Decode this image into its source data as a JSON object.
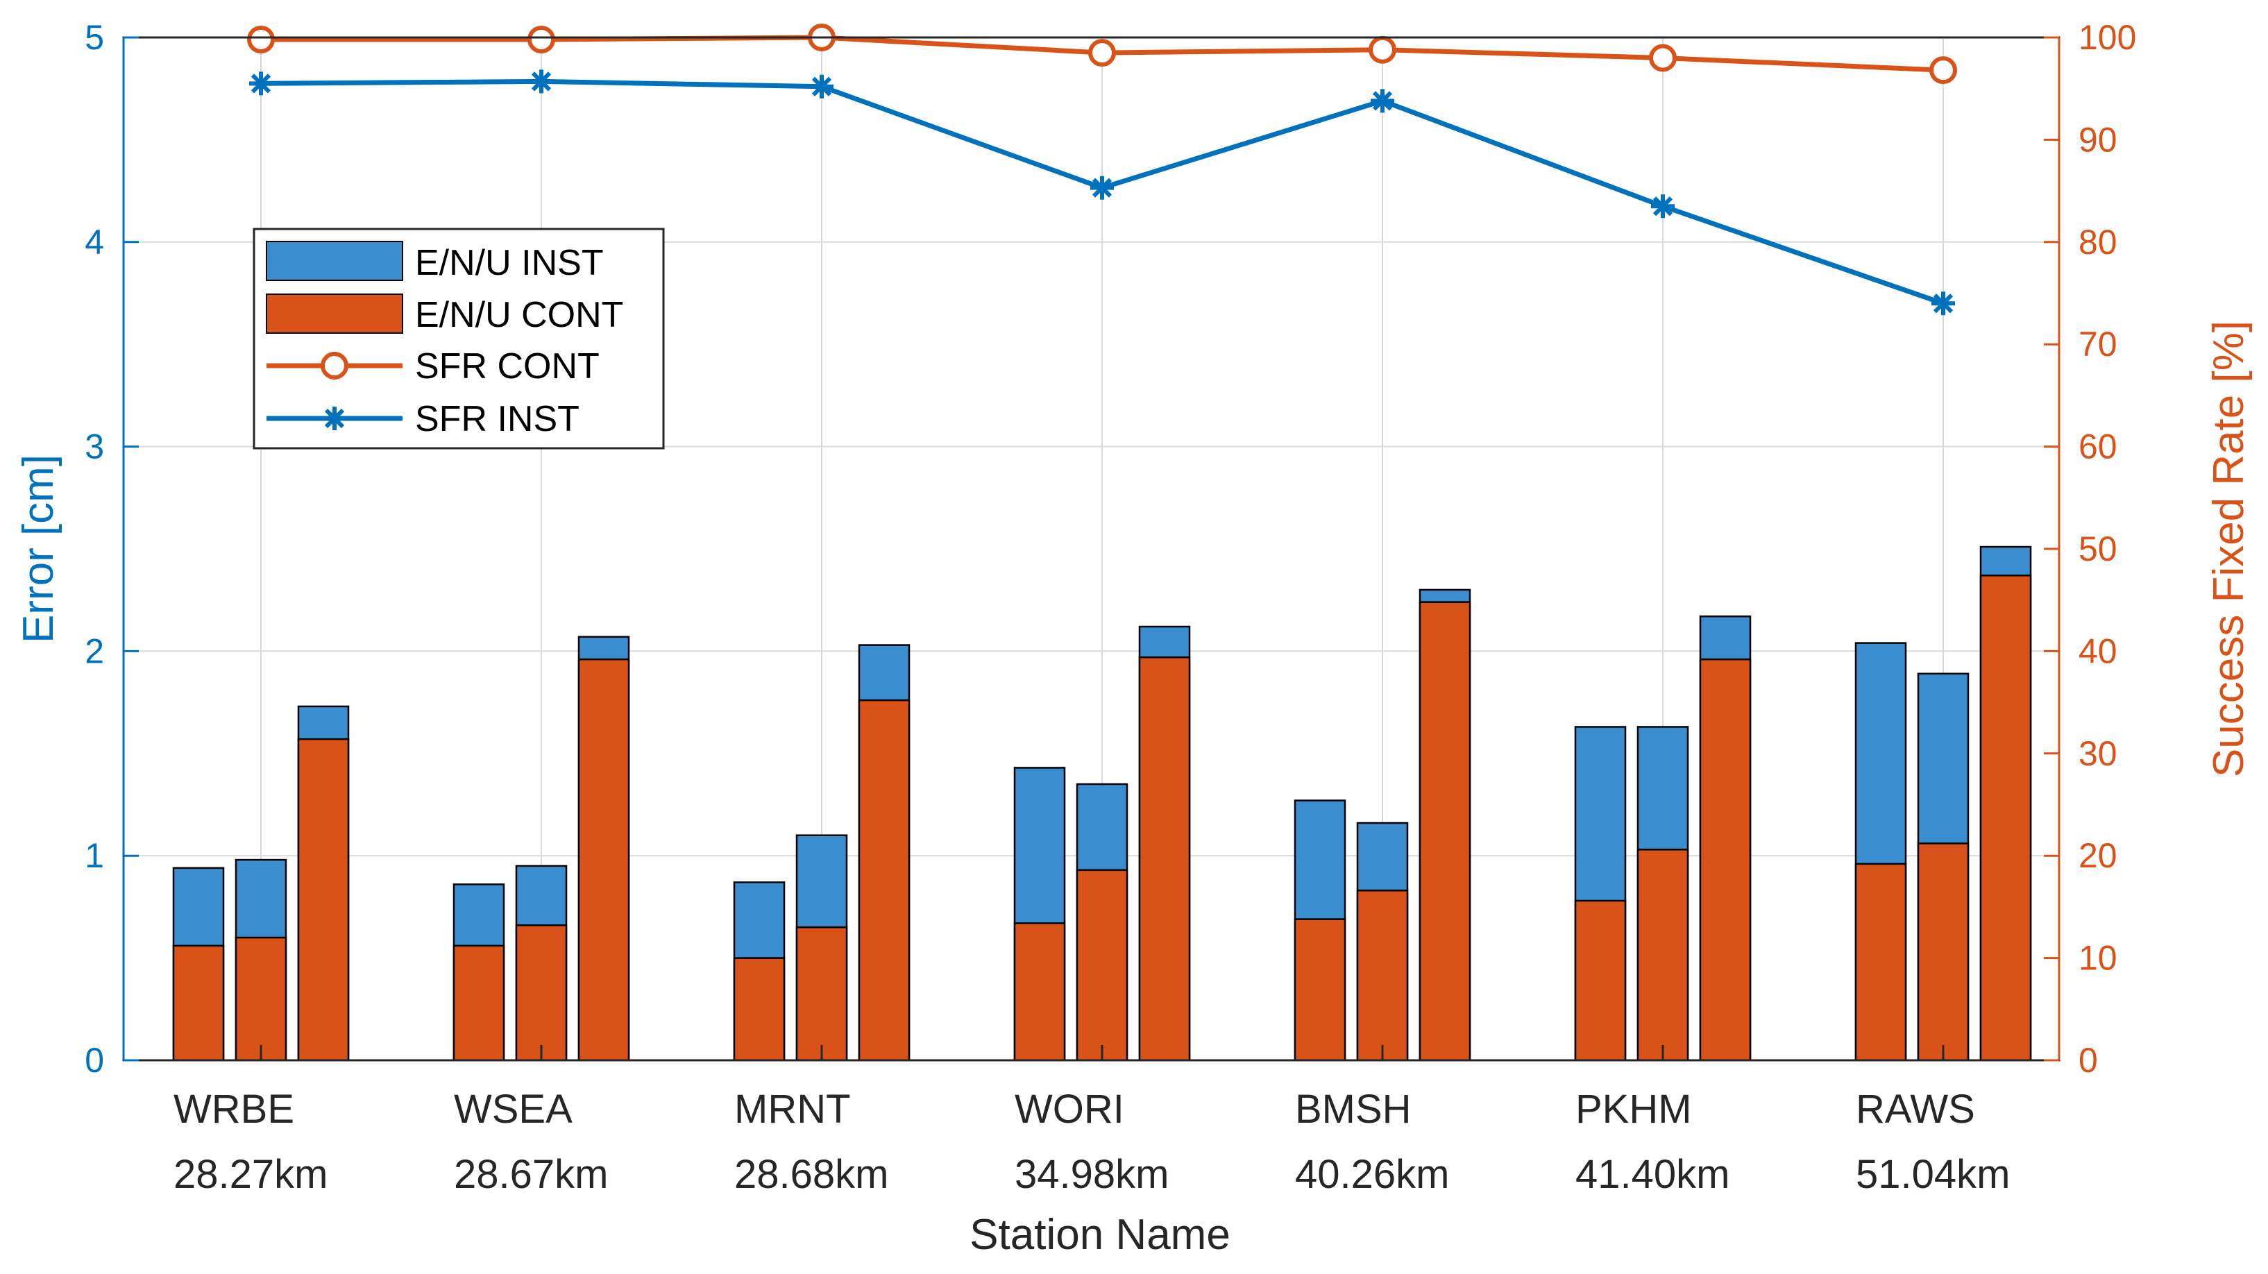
{
  "chart_data": {
    "type": "bar",
    "title": "",
    "xlabel": "Station Name",
    "ylabel_left": "Error [cm]",
    "ylabel_right": "Success Fixed Rate [%]",
    "ylim_left": [
      0,
      5
    ],
    "ylim_right": [
      0,
      100
    ],
    "yticks_left": [
      0,
      1,
      2,
      3,
      4,
      5
    ],
    "yticks_right": [
      0,
      10,
      20,
      30,
      40,
      50,
      60,
      70,
      80,
      90,
      100
    ],
    "grid": true,
    "legend_position": "upper-left",
    "categories": [
      "WRBE",
      "WSEA",
      "MRNT",
      "WORI",
      "BMSH",
      "PKHM",
      "RAWS"
    ],
    "category_distances": [
      "28.27km",
      "28.67km",
      "28.68km",
      "34.98km",
      "40.26km",
      "41.40km",
      "51.04km"
    ],
    "components": [
      "E",
      "N",
      "U"
    ],
    "bars_inst": {
      "E": [
        0.94,
        0.86,
        0.87,
        1.43,
        1.27,
        1.63,
        2.04
      ],
      "N": [
        0.98,
        0.95,
        1.1,
        1.35,
        1.16,
        1.63,
        1.89
      ],
      "U": [
        1.73,
        2.07,
        2.03,
        2.12,
        2.3,
        2.17,
        2.51
      ]
    },
    "bars_cont": {
      "E": [
        0.56,
        0.56,
        0.5,
        0.67,
        0.69,
        0.78,
        0.96
      ],
      "N": [
        0.6,
        0.66,
        0.65,
        0.93,
        0.83,
        1.03,
        1.06
      ],
      "U": [
        1.57,
        1.96,
        1.76,
        1.97,
        2.24,
        1.96,
        2.37
      ]
    },
    "series": [
      {
        "name": "SFR CONT",
        "axis": "right",
        "marker": "circle",
        "values": [
          99.8,
          99.8,
          100.0,
          98.5,
          98.8,
          98.0,
          96.8
        ]
      },
      {
        "name": "SFR INST",
        "axis": "right",
        "marker": "asterisk",
        "values": [
          95.5,
          95.7,
          95.2,
          85.3,
          93.8,
          83.5,
          74.0
        ]
      }
    ],
    "legend": [
      "E/N/U INST",
      "E/N/U CONT",
      "SFR CONT",
      "SFR INST"
    ]
  },
  "colors": {
    "inst": "#3a8ecf",
    "cont": "#d95319",
    "left_axis": "#0072bd",
    "right_axis": "#d95319",
    "line_inst": "#0072bd",
    "line_cont": "#d95319"
  }
}
